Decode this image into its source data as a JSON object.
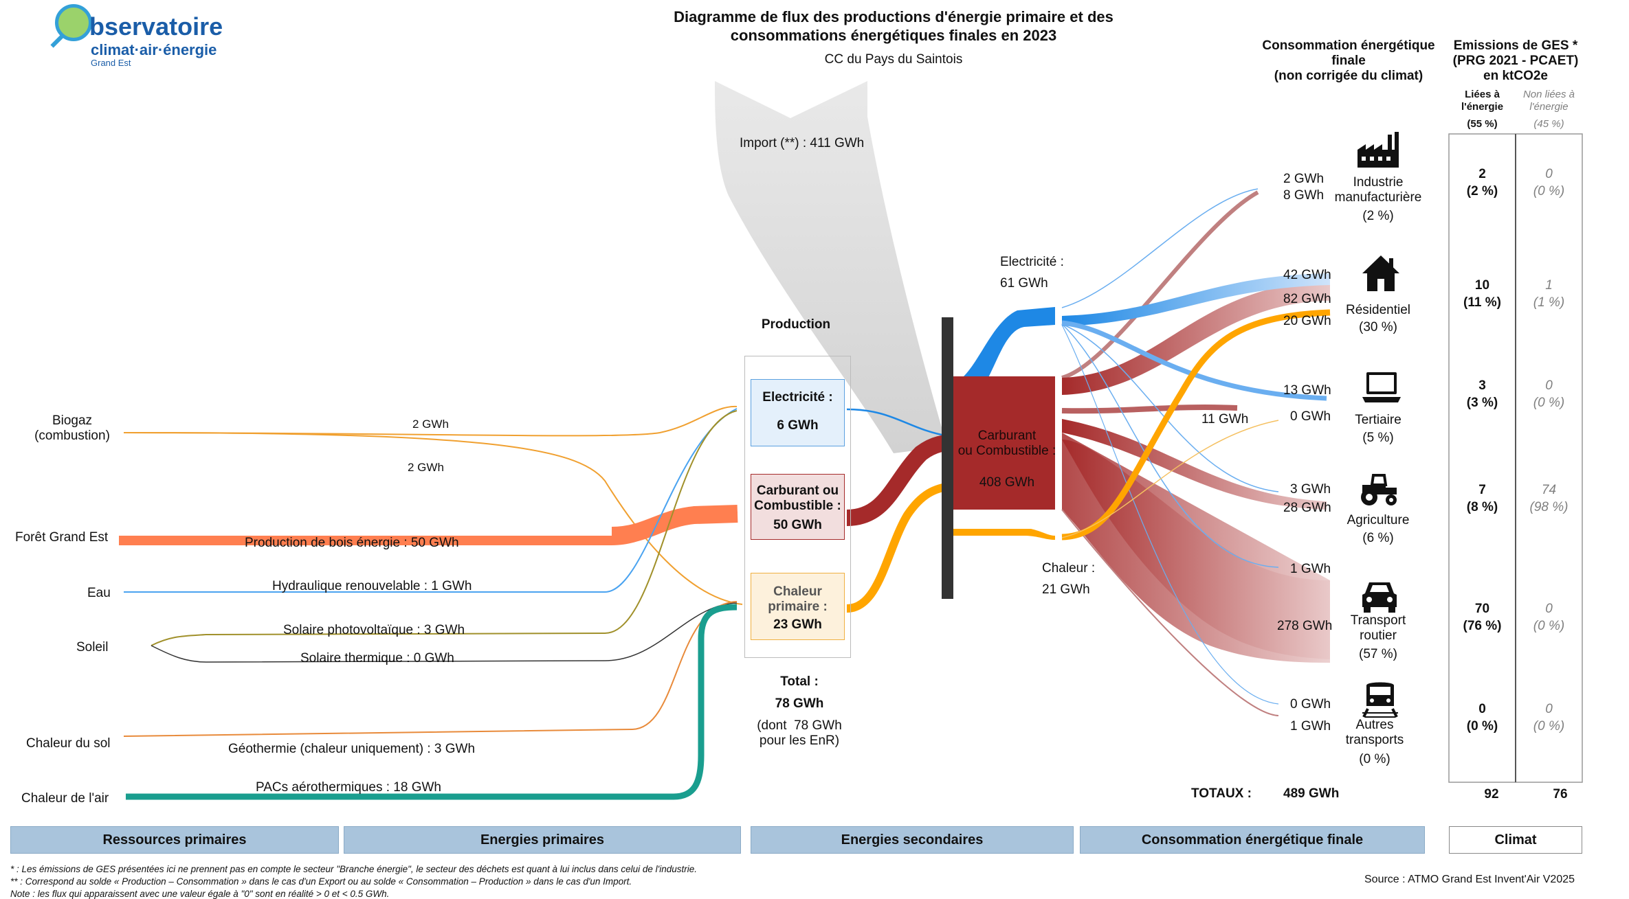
{
  "logo": {
    "line1": "bservatoire",
    "line2": "climat·air·énergie",
    "line3": "Grand Est"
  },
  "header": {
    "title_line1": "Diagramme de flux des productions d'énergie primaire et des",
    "title_line2": "consommations énergétiques finales en 2023",
    "territory": "CC du Pays du Saintois"
  },
  "import_label": "Import (**) :  411 GWh",
  "sources": [
    {
      "name": "Biogaz\n(combustion)"
    },
    {
      "name": "Forêt Grand Est"
    },
    {
      "name": "Eau"
    },
    {
      "name": "Soleil"
    },
    {
      "name": "Chaleur du sol"
    },
    {
      "name": "Chaleur de l'air"
    }
  ],
  "flows": {
    "biogaz_elec": "2 GWh",
    "biogaz_chaleur": "2 GWh",
    "bois": "Production de bois énergie :  50 GWh",
    "hydro": "Hydraulique renouvelable :  1 GWh",
    "pv": "Solaire photovoltaïque :  3 GWh",
    "thermique": "Solaire thermique :  0 GWh",
    "geo": "Géothermie (chaleur uniquement) :  3 GWh",
    "pac": "PACs aérothermiques :  18 GWh"
  },
  "production": {
    "header": "Production",
    "elec_label": "Electricité :",
    "elec_value": "6 GWh",
    "comb_label": "Carburant ou\nCombustible :",
    "comb_value": "50 GWh",
    "chal_label": "Chaleur\nprimaire :",
    "chal_value": "23 GWh",
    "total_label": "Total :",
    "total_value": "78 GWh",
    "total_note": "(dont  78 GWh\npour les EnR)"
  },
  "secondary": {
    "elec": "Electricité :\n61 GWh",
    "comb": "Carburant\nou Combustible :",
    "comb_value": "408 GWh",
    "chal": "Chaleur :\n21 GWh"
  },
  "consumption": {
    "header": "Consommation énergétique\nfinale\n(non corrigée du climat)",
    "flow_labels": {
      "ind_elec": "2 GWh",
      "ind_comb": "8 GWh",
      "res_elec": "42 GWh",
      "res_comb": "82 GWh",
      "res_chal": "20 GWh",
      "ter_elec": "13 GWh",
      "ter_comb": "11 GWh",
      "ter_chal": "0 GWh",
      "agr_elec": "3 GWh",
      "agr_comb": "28 GWh",
      "tr_elec": "1 GWh",
      "tr_comb": "278 GWh",
      "au_elec": "0 GWh",
      "au_comb": "1 GWh"
    },
    "sectors": [
      {
        "name": "Industrie\nmanufacturière",
        "pct": "(2 %)",
        "icon": "factory-icon",
        "ges_e": "2",
        "ges_e_pct": "(2 %)",
        "ges_ne": "0",
        "ges_ne_pct": "(0 %)"
      },
      {
        "name": "Résidentiel",
        "pct": "(30 %)",
        "icon": "house-icon",
        "ges_e": "10",
        "ges_e_pct": "(11 %)",
        "ges_ne": "1",
        "ges_ne_pct": "(1 %)"
      },
      {
        "name": "Tertiaire",
        "pct": "(5 %)",
        "icon": "laptop-icon",
        "ges_e": "3",
        "ges_e_pct": "(3 %)",
        "ges_ne": "0",
        "ges_ne_pct": "(0 %)"
      },
      {
        "name": "Agriculture",
        "pct": "(6 %)",
        "icon": "tractor-icon",
        "ges_e": "7",
        "ges_e_pct": "(8 %)",
        "ges_ne": "74",
        "ges_ne_pct": "(98 %)"
      },
      {
        "name": "Transport\nroutier",
        "pct": "(57 %)",
        "icon": "car-icon",
        "ges_e": "70",
        "ges_e_pct": "(76 %)",
        "ges_ne": "0",
        "ges_ne_pct": "(0 %)"
      },
      {
        "name": "Autres\ntransports",
        "pct": "(0 %)",
        "icon": "train-icon",
        "ges_e": "0",
        "ges_e_pct": "(0 %)",
        "ges_ne": "0",
        "ges_ne_pct": "(0 %)"
      }
    ],
    "totals_label": "TOTAUX :",
    "totals_value": "489 GWh"
  },
  "emissions": {
    "header": "Emissions de GES *\n(PRG 2021 - PCAET)\nen ktCO2e",
    "col1": "Liées à\nl'énergie",
    "col1_pct": "(55 %)",
    "col2": "Non liées à\nl'énergie",
    "col2_pct": "(45 %)",
    "total1": "92",
    "total2": "76"
  },
  "footer": {
    "cat1": "Ressources primaires",
    "cat2": "Energies primaires",
    "cat3": "Energies secondaires",
    "cat4": "Consommation énergétique finale",
    "cat5": "Climat",
    "note1": "* : Les émissions de GES présentées ici ne prennent pas en compte le secteur \"Branche énergie\", le secteur des déchets est quant à lui inclus dans celui de l'industrie.",
    "note2": "** : Correspond au solde « Production – Consommation » dans le cas d'un Export ou au solde « Consommation – Production » dans le cas d'un Import.",
    "note3": "Note : les flux qui apparaissent avec une valeur égale à \"0\" sont en réalité > 0 et < 0.5 GWh.",
    "source": "Source : ATMO Grand Est Invent'Air V2025"
  },
  "colors": {
    "electricity": "#1e88e5",
    "fuel": "#a52a2a",
    "heat": "#ffa500",
    "wood": "#ff7f50",
    "pac": "#1a9e8f",
    "import": "#dcdcdc",
    "footer": "#a9c4dc"
  }
}
